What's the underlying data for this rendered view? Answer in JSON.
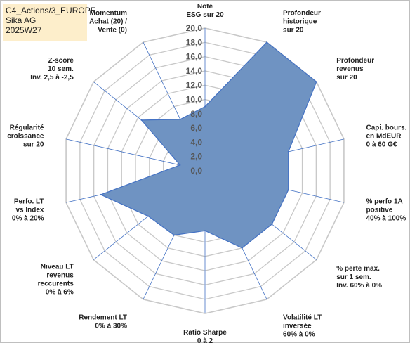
{
  "header": {
    "line1": "C4_Actions/3_EUROPE",
    "line2": "Sika AG",
    "line3": "2025W27"
  },
  "chart_data": {
    "type": "radar",
    "rlim": [
      0,
      20
    ],
    "ticks": [
      "0,0",
      "2,0",
      "4,0",
      "6,0",
      "8,0",
      "10,0",
      "12,0",
      "14,0",
      "16,0",
      "18,0",
      "20,0"
    ],
    "axes": [
      [
        "Note",
        "ESG sur 20"
      ],
      [
        "Profondeur",
        "historique",
        "sur 20"
      ],
      [
        "Profondeur",
        "revenus",
        "sur 20"
      ],
      [
        "Capi. bours.",
        "en MdEUR",
        "0 à 60 G€"
      ],
      [
        "% perfo 1A",
        "positive",
        "40% à 100%"
      ],
      [
        "% perte max.",
        "sur 1 sem.",
        "Inv. 60% à 0%"
      ],
      [
        "Volatilité LT",
        "inversée",
        "60% à 0%"
      ],
      [
        "Ratio Sharpe",
        "0 à 2"
      ],
      [
        "Rendement LT",
        "0% à 30%"
      ],
      [
        "Niveau LT",
        "revenus",
        "reccurents",
        "0% à 6%"
      ],
      [
        "Perfo. LT",
        "vs Index",
        "0% à 20%"
      ],
      [
        "Régularité",
        "croissance",
        "sur 20"
      ],
      [
        "Z-score",
        "10 sem.",
        "Inv. 2,5 à -2,5"
      ],
      [
        "Momentum",
        "Achat (20) /",
        "Vente (0)"
      ]
    ],
    "values": [
      9.0,
      20.0,
      20.0,
      12.0,
      12.0,
      12.0,
      12.0,
      8.4,
      10.0,
      10.2,
      15.0,
      3.6,
      11.4,
      8.0
    ],
    "fill_color": "#6f93c2",
    "stroke_color": "#4472c4",
    "grid_color": "#c8c8c8",
    "spoke_color": "#4472c4"
  }
}
